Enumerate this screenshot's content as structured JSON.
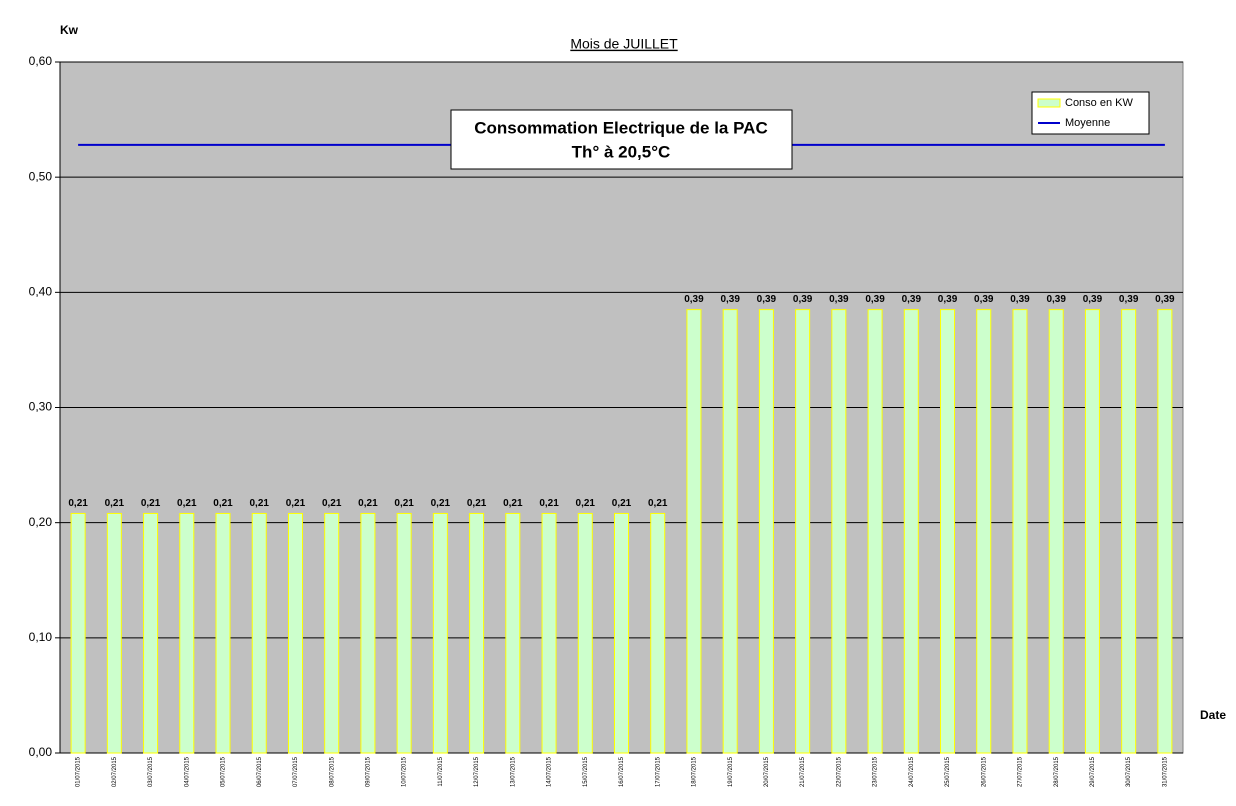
{
  "chart_data": {
    "type": "bar",
    "title": "Mois  de  JUILLET",
    "annotation": [
      "Consommation Electrique de la PAC",
      "Th° à  20,5°C"
    ],
    "y_label": "Kw",
    "x_label": "Date",
    "categories": [
      "01/07/2015",
      "02/07/2015",
      "03/07/2015",
      "04/07/2015",
      "05/07/2015",
      "06/07/2015",
      "07/07/2015",
      "08/07/2015",
      "09/07/2015",
      "10/07/2015",
      "11/07/2015",
      "12/07/2015",
      "13/07/2015",
      "14/07/2015",
      "15/07/2015",
      "16/07/2015",
      "17/07/2015",
      "18/07/2015",
      "19/07/2015",
      "20/07/2015",
      "21/07/2015",
      "22/07/2015",
      "23/07/2015",
      "24/07/2015",
      "25/07/2015",
      "26/07/2015",
      "27/07/2015",
      "28/07/2015",
      "29/07/2015",
      "30/07/2015",
      "31/07/2015"
    ],
    "series": [
      {
        "name": "Conso en KW",
        "type": "bar",
        "color": "#ccffcc",
        "edge_color": "#ffff00",
        "values": [
          0.208,
          0.208,
          0.208,
          0.208,
          0.208,
          0.208,
          0.208,
          0.208,
          0.208,
          0.208,
          0.208,
          0.208,
          0.208,
          0.208,
          0.208,
          0.208,
          0.208,
          0.385,
          0.385,
          0.385,
          0.385,
          0.385,
          0.385,
          0.385,
          0.385,
          0.385,
          0.385,
          0.385,
          0.385,
          0.385,
          0.385
        ],
        "value_labels": [
          "0,21",
          "0,21",
          "0,21",
          "0,21",
          "0,21",
          "0,21",
          "0,21",
          "0,21",
          "0,21",
          "0,21",
          "0,21",
          "0,21",
          "0,21",
          "0,21",
          "0,21",
          "0,21",
          "0,21",
          "0,39",
          "0,39",
          "0,39",
          "0,39",
          "0,39",
          "0,39",
          "0,39",
          "0,39",
          "0,39",
          "0,39",
          "0,39",
          "0,39",
          "0,39",
          "0,39"
        ],
        "label_color": "#0000cc"
      },
      {
        "name": "Moyenne",
        "type": "line",
        "color": "#0000cc",
        "values": [
          0.528,
          0.528,
          0.528,
          0.528,
          0.528,
          0.528,
          0.528,
          0.528,
          0.528,
          0.528,
          0.528,
          0.528,
          0.528,
          0.528,
          0.528,
          0.528,
          0.528,
          0.528,
          0.528,
          0.528,
          0.528,
          0.528,
          0.528,
          0.528,
          0.528,
          0.528,
          0.528,
          0.528,
          0.528,
          0.528,
          0.528
        ]
      }
    ],
    "ylim": [
      0,
      0.6
    ],
    "yticks": [
      {
        "value": 0,
        "label": "0,00"
      },
      {
        "value": 0.1,
        "label": "0,10"
      },
      {
        "value": 0.2,
        "label": "0,20"
      },
      {
        "value": 0.3,
        "label": "0,30"
      },
      {
        "value": 0.4,
        "label": "0,40"
      },
      {
        "value": 0.5,
        "label": "0,50"
      },
      {
        "value": 0.6,
        "label": "0,60"
      }
    ],
    "grid": true,
    "plot_background": "#c0c0c0",
    "legend": "upper right"
  }
}
